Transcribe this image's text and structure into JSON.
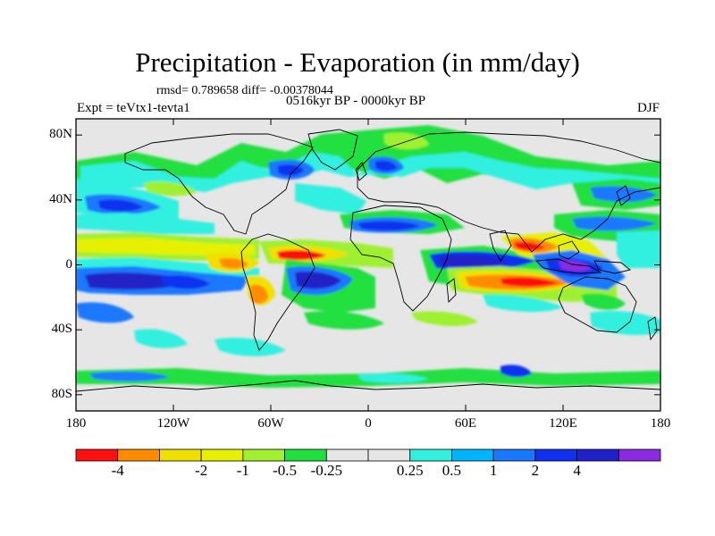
{
  "title": "Precipitation - Evaporation (in mm/day)",
  "stats": "rmsd= 0.789658 diff= -0.00378044",
  "period": "0516kyr BP - 0000kyr BP",
  "experiment": "Expt = teVtx1-tevta1",
  "season": "DJF",
  "lat_ticks": [
    {
      "label": "80N",
      "value": 80
    },
    {
      "label": "40N",
      "value": 40
    },
    {
      "label": "0",
      "value": 0
    },
    {
      "label": "40S",
      "value": -40
    },
    {
      "label": "80S",
      "value": -80
    }
  ],
  "lon_ticks": [
    {
      "label": "180",
      "value": -180
    },
    {
      "label": "120W",
      "value": -120
    },
    {
      "label": "60W",
      "value": -60
    },
    {
      "label": "0",
      "value": 0
    },
    {
      "label": "60E",
      "value": 60
    },
    {
      "label": "120E",
      "value": 120
    },
    {
      "label": "180",
      "value": 180
    }
  ],
  "colorbar": {
    "colors": [
      "#ff1010",
      "#ff8c00",
      "#f0e000",
      "#e6f000",
      "#a0f030",
      "#20e040",
      "#e6e6e6",
      "#e6e6e6",
      "#30f0e0",
      "#00b4ff",
      "#1a78ff",
      "#1030f0",
      "#2020c8",
      "#8a2be2"
    ],
    "labels": [
      "-4",
      "-2",
      "-1",
      "-0.5",
      "-0.25",
      "0.25",
      "0.5",
      "1",
      "2",
      "4"
    ]
  }
}
